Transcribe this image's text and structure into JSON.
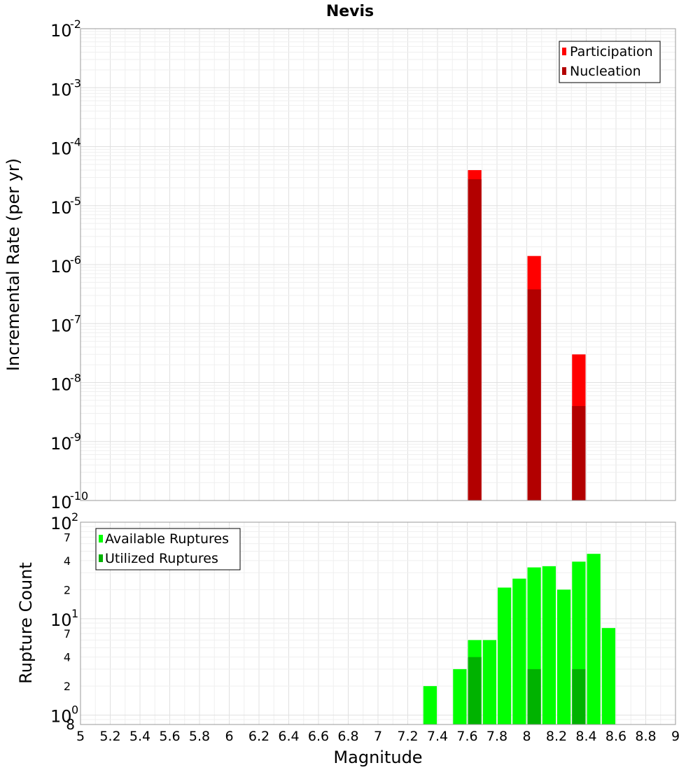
{
  "figure": {
    "title": "Nevis"
  },
  "chart_data": [
    {
      "type": "bar",
      "ylabel": "Incremental Rate (per yr)",
      "yscale": "log",
      "ylim": [
        1e-10,
        0.01
      ],
      "xlim": [
        5,
        9
      ],
      "bin_width": 0.1,
      "y_tick_labels": [
        {
          "value": 1e-10,
          "base": "10",
          "exp": "-10"
        },
        {
          "value": 1e-09,
          "base": "10",
          "exp": "-9"
        },
        {
          "value": 1e-08,
          "base": "10",
          "exp": "-8"
        },
        {
          "value": 1e-07,
          "base": "10",
          "exp": "-7"
        },
        {
          "value": 1e-06,
          "base": "10",
          "exp": "-6"
        },
        {
          "value": 1e-05,
          "base": "10",
          "exp": "-5"
        },
        {
          "value": 0.0001,
          "base": "10",
          "exp": "-4"
        },
        {
          "value": 0.001,
          "base": "10",
          "exp": "-3"
        },
        {
          "value": 0.01,
          "base": "10",
          "exp": "-2"
        }
      ],
      "legend_position": "top-right",
      "series": [
        {
          "name": "Participation",
          "color": "#ff0000",
          "x": [
            7.65,
            8.05,
            8.35
          ],
          "values": [
            4e-05,
            1.4e-06,
            3e-08
          ]
        },
        {
          "name": "Nucleation",
          "color": "#b20000",
          "x": [
            7.65,
            8.05,
            8.35
          ],
          "values": [
            2.8e-05,
            3.8e-07,
            4e-09
          ]
        }
      ]
    },
    {
      "type": "bar",
      "xlabel": "Magnitude",
      "ylabel": "Rupture Count",
      "yscale": "log",
      "ylim": [
        0.8,
        100
      ],
      "xlim": [
        5,
        9
      ],
      "bin_width": 0.1,
      "x_tick_labels": [
        "5",
        "5.2",
        "5.4",
        "5.6",
        "5.8",
        "6",
        "6.2",
        "6.4",
        "6.6",
        "6.8",
        "7",
        "7.2",
        "7.4",
        "7.6",
        "7.8",
        "8",
        "8.2",
        "8.4",
        "8.6",
        "8.8",
        "9"
      ],
      "y_major_tick_labels": [
        {
          "value": 1,
          "base": "10",
          "exp": "0"
        },
        {
          "value": 10,
          "base": "10",
          "exp": "1"
        },
        {
          "value": 100,
          "base": "10",
          "exp": "2"
        }
      ],
      "y_minor_tick_labels": [
        {
          "value": 0.8,
          "label": "8"
        },
        {
          "value": 2,
          "label": "2"
        },
        {
          "value": 4,
          "label": "4"
        },
        {
          "value": 7,
          "label": "7"
        },
        {
          "value": 20,
          "label": "2"
        },
        {
          "value": 40,
          "label": "4"
        },
        {
          "value": 70,
          "label": "7"
        }
      ],
      "legend_position": "top-left",
      "series": [
        {
          "name": "Available Ruptures",
          "color": "#00ff00",
          "x": [
            7.35,
            7.55,
            7.65,
            7.75,
            7.85,
            7.95,
            8.05,
            8.15,
            8.25,
            8.35,
            8.45,
            8.55
          ],
          "values": [
            2,
            3,
            6,
            6,
            21,
            26,
            34,
            35,
            20,
            39,
            47,
            8
          ]
        },
        {
          "name": "Utilized Ruptures",
          "color": "#00b200",
          "x": [
            7.65,
            8.05,
            8.35
          ],
          "values": [
            4,
            3,
            3
          ]
        }
      ]
    }
  ]
}
